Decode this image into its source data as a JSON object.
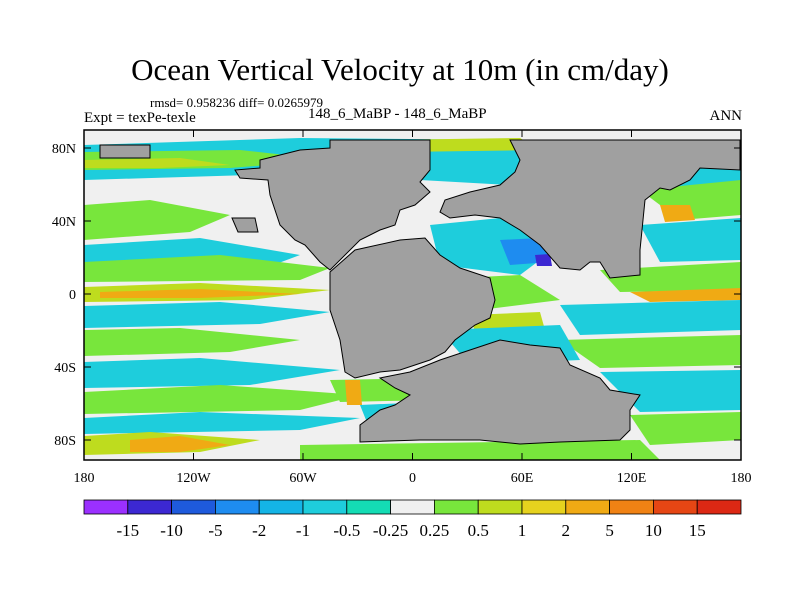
{
  "title": "Ocean Vertical Velocity at 10m (in cm/day)",
  "stats_line": "rmsd= 0.958236 diff= 0.0265979",
  "experiment_label": "Expt = texPe-texle",
  "center_label": "148_6_MaBP - 148_6_MaBP",
  "season_label": "ANN",
  "x_ticks": [
    "180",
    "120W",
    "60W",
    "0",
    "60E",
    "120E",
    "180"
  ],
  "y_ticks": [
    "80N",
    "40N",
    "0",
    "40S",
    "80S"
  ],
  "colorbar": {
    "labels": [
      "-15",
      "-10",
      "-5",
      "-2",
      "-1",
      "-0.5",
      "-0.25",
      "0.25",
      "0.5",
      "1",
      "2",
      "5",
      "10",
      "15"
    ],
    "colors": [
      "#9b30ff",
      "#3c28d2",
      "#1e5adc",
      "#1e8cf0",
      "#14b4e6",
      "#1ecddc",
      "#14dcb4",
      "#f0f0f0",
      "#78e63c",
      "#bedc1e",
      "#e6d21e",
      "#f0aa14",
      "#f08214",
      "#e64614",
      "#dc2814"
    ]
  },
  "map_colors": {
    "land": "#a0a0a0",
    "neutral": "#f0f0f0",
    "positive_weak": "#78e63c",
    "positive_mid": "#bedc1e",
    "positive_strong": "#f0aa14",
    "negative_weak": "#1ecddc",
    "negative_mid": "#14b4e6",
    "negative_strong": "#1e8cf0"
  }
}
